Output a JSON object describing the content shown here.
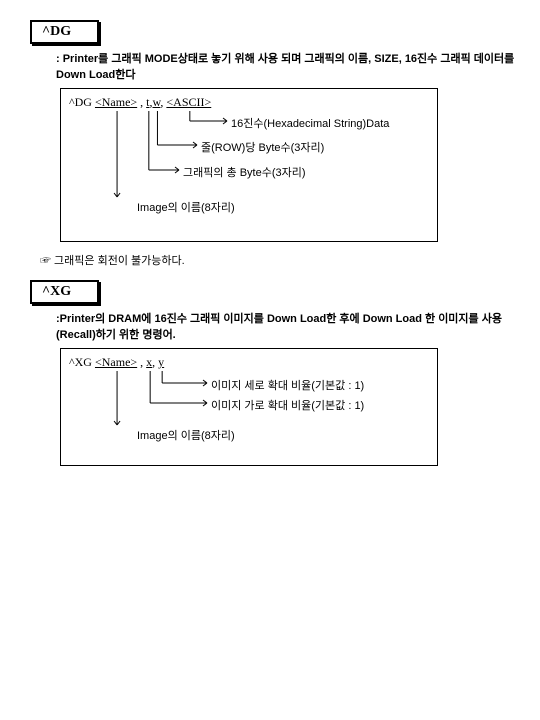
{
  "dg": {
    "title": "^DG",
    "desc": ": Printer를 그래픽 MODE상태로 놓기 위해 사용 되며 그래픽의 이름, SIZE, 16진수 그래픽 데이터를 Down Load한다",
    "syntax_cmd": "^DG ",
    "name_lbl": "<Name>",
    "sep1": " , ",
    "t_lbl": "t",
    "sep2": ",",
    "w_lbl": "w",
    "sep3": ", ",
    "ascii_lbl": "<ASCII>",
    "ann_ascii": "16진수(Hexadecimal String)Data",
    "ann_w": "줄(ROW)당 Byte수(3자리)",
    "ann_t": "그래픽의 총 Byte수(3자리)",
    "ann_name": "Image의 이름(8자리)",
    "diagram_width": 360,
    "diagram_height": 136,
    "line_color": "#000000"
  },
  "note_rotate": "☞ 그래픽은 회전이 불가능하다.",
  "xg": {
    "title": "^XG",
    "desc": ":Printer의 DRAM에 16진수 그래픽 이미지를 Down Load한 후에   Down Load  한 이미지를 사용(Recall)하기 위한 명령어.",
    "syntax_cmd": "^XG ",
    "name_lbl": "<Name>",
    "sep1": " , ",
    "x_lbl": "x",
    "sep2": ", ",
    "y_lbl": "y",
    "ann_y": "이미지 세로 확대 비율(기본값 : 1)",
    "ann_x": "이미지 가로 확대 비율(기본값 : 1)",
    "ann_name": "Image의 이름(8자리)",
    "diagram_width": 360,
    "diagram_height": 100,
    "line_color": "#000000"
  }
}
